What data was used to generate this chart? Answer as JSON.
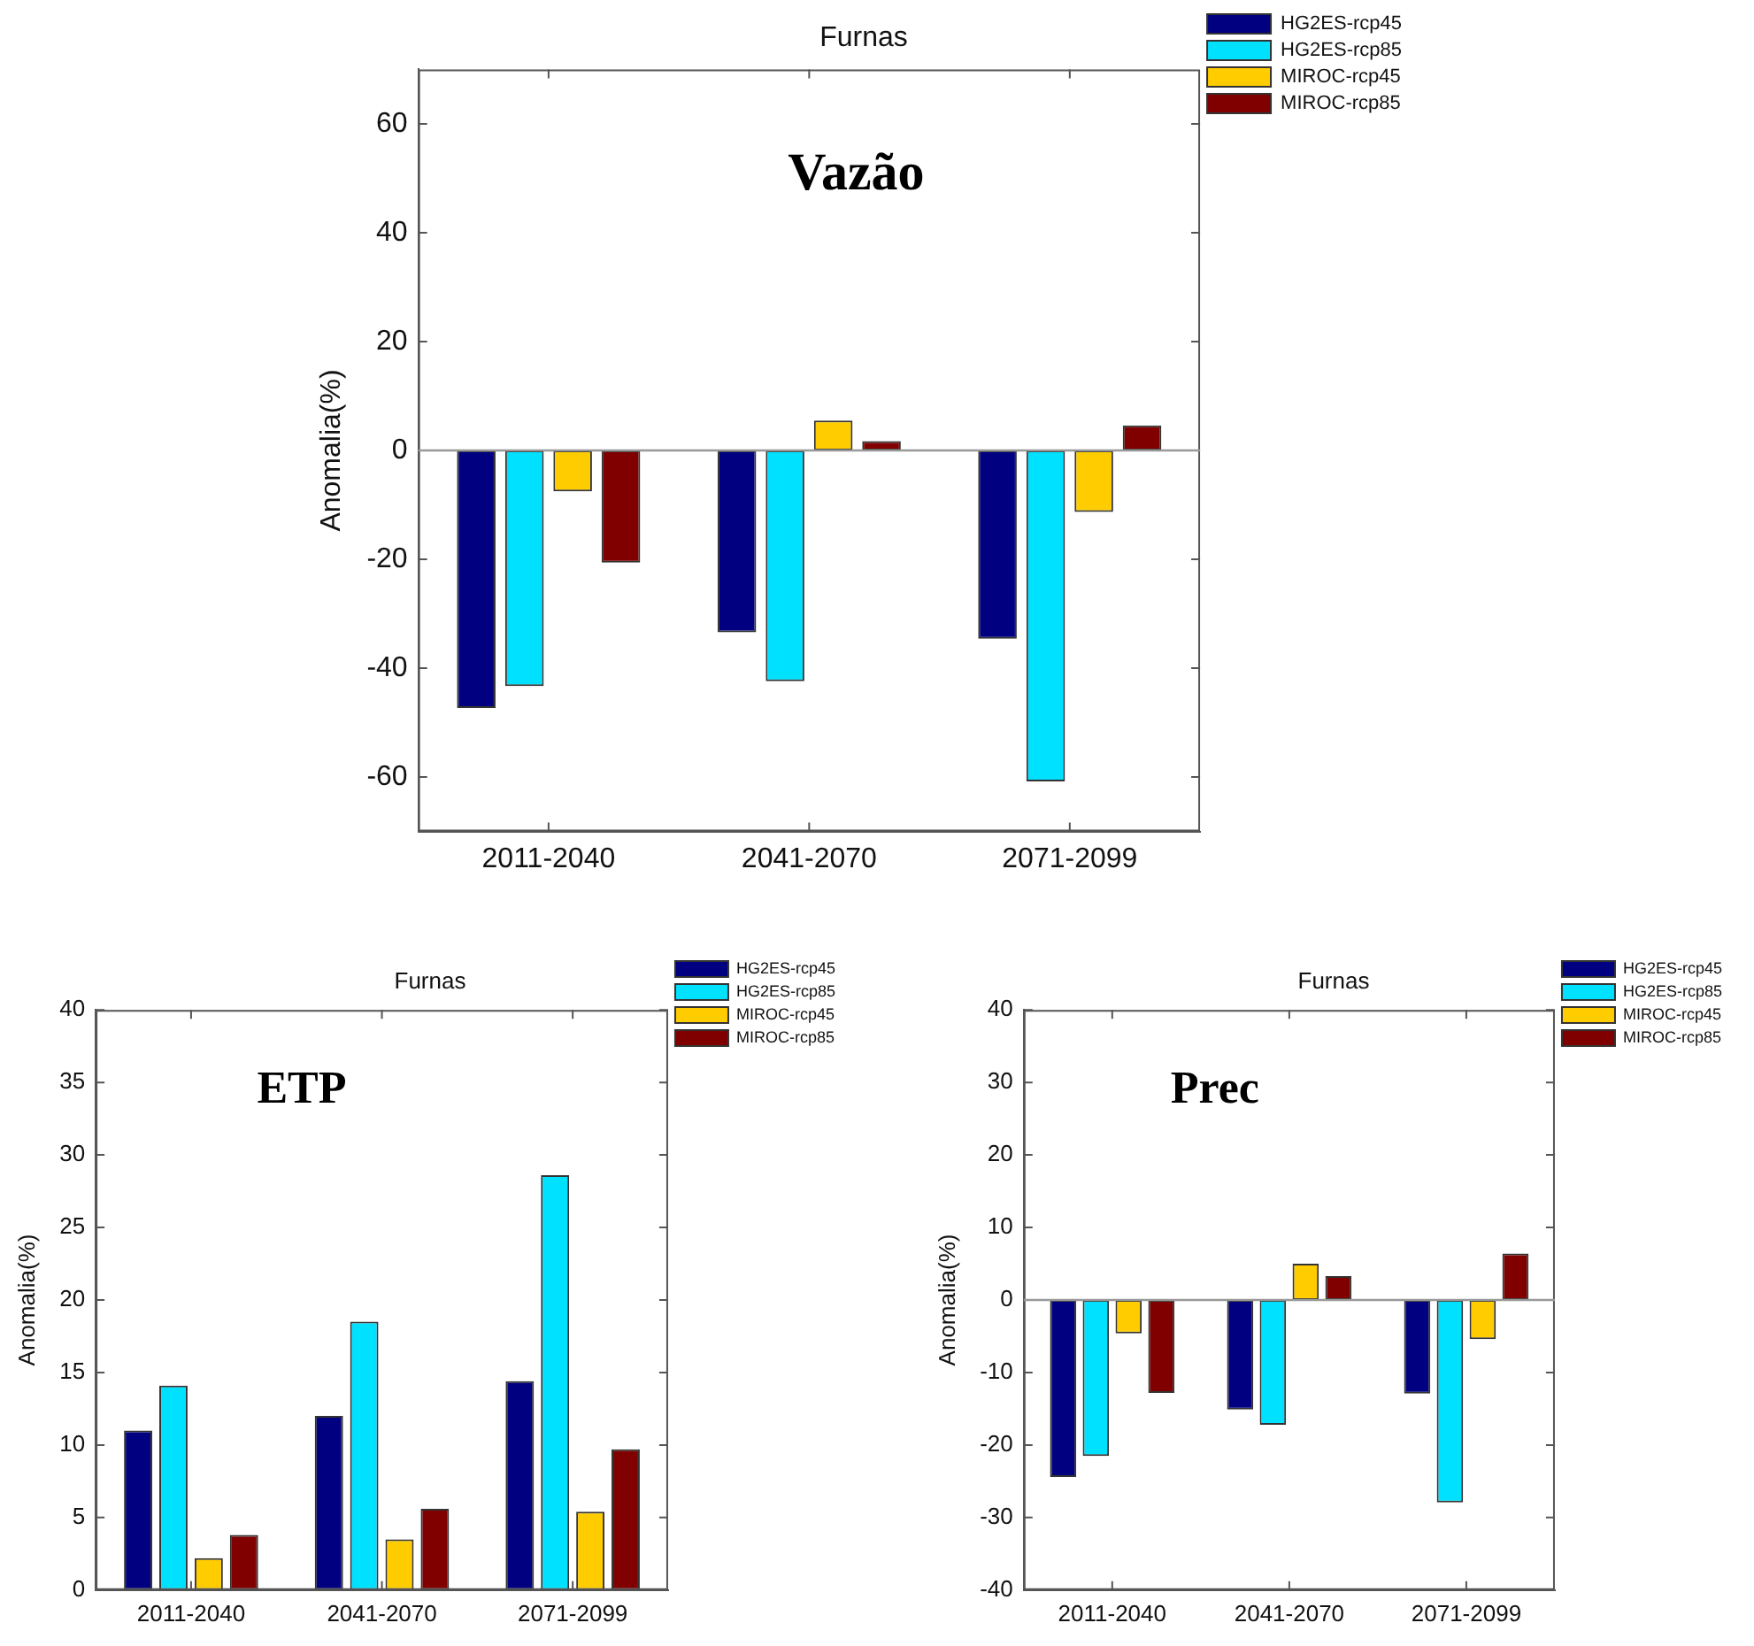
{
  "chart_data": [
    {
      "type": "bar",
      "title": "Furnas",
      "ylabel": "Anomalia(%)",
      "annotations": [
        "Vazão"
      ],
      "categories": [
        "2011-2040",
        "2041-2070",
        "2071-2099"
      ],
      "series": [
        {
          "name": "HG2ES-rcp45",
          "color": "#000080",
          "values": [
            -47.3,
            -33.4,
            -34.6
          ]
        },
        {
          "name": "HG2ES-rcp85",
          "color": "#00e0ff",
          "values": [
            -43.3,
            -42.4,
            -60.8
          ]
        },
        {
          "name": "MIROC-rcp45",
          "color": "#ffcc00",
          "values": [
            -7.5,
            5.5,
            -11.3
          ]
        },
        {
          "name": "MIROC-rcp85",
          "color": "#800000",
          "values": [
            -20.6,
            1.7,
            4.6
          ]
        }
      ],
      "ylim": [
        -70,
        70
      ],
      "yticks": [
        -60,
        -40,
        -20,
        0,
        20,
        40,
        60
      ],
      "grid": false,
      "legend": "top right",
      "ref_lines": [
        {
          "axis": "y",
          "value": 0,
          "color": "#999999"
        }
      ]
    },
    {
      "type": "bar",
      "title": "Furnas",
      "ylabel": "Anomalia(%)",
      "annotations": [
        "ETP"
      ],
      "categories": [
        "2011-2040",
        "2041-2070",
        "2071-2099"
      ],
      "series": [
        {
          "name": "HG2ES-rcp45",
          "color": "#000080",
          "values": [
            11.0,
            12.0,
            14.4
          ]
        },
        {
          "name": "HG2ES-rcp85",
          "color": "#00e0ff",
          "values": [
            14.1,
            18.5,
            28.6
          ]
        },
        {
          "name": "MIROC-rcp45",
          "color": "#ffcc00",
          "values": [
            2.2,
            3.5,
            5.4
          ]
        },
        {
          "name": "MIROC-rcp85",
          "color": "#800000",
          "values": [
            3.8,
            5.6,
            9.7
          ]
        }
      ],
      "ylim": [
        0,
        40
      ],
      "yticks": [
        0,
        5,
        10,
        15,
        20,
        25,
        30,
        35,
        40
      ],
      "grid": false,
      "legend": "top right"
    },
    {
      "type": "bar",
      "title": "Furnas",
      "ylabel": "Anomalia(%)",
      "annotations": [
        "Prec"
      ],
      "categories": [
        "2011-2040",
        "2041-2070",
        "2071-2099"
      ],
      "series": [
        {
          "name": "HG2ES-rcp45",
          "color": "#000080",
          "values": [
            -24.4,
            -15.1,
            -12.9
          ]
        },
        {
          "name": "HG2ES-rcp85",
          "color": "#00e0ff",
          "values": [
            -21.5,
            -17.2,
            -27.9
          ]
        },
        {
          "name": "MIROC-rcp45",
          "color": "#ffcc00",
          "values": [
            -4.6,
            5.0,
            -5.4
          ]
        },
        {
          "name": "MIROC-rcp85",
          "color": "#800000",
          "values": [
            -12.8,
            3.3,
            6.4
          ]
        }
      ],
      "ylim": [
        -40,
        40
      ],
      "yticks": [
        -40,
        -30,
        -20,
        -10,
        0,
        10,
        20,
        30,
        40
      ],
      "grid": false,
      "legend": "top right",
      "ref_lines": [
        {
          "axis": "y",
          "value": 0,
          "color": "#999999"
        }
      ]
    }
  ]
}
